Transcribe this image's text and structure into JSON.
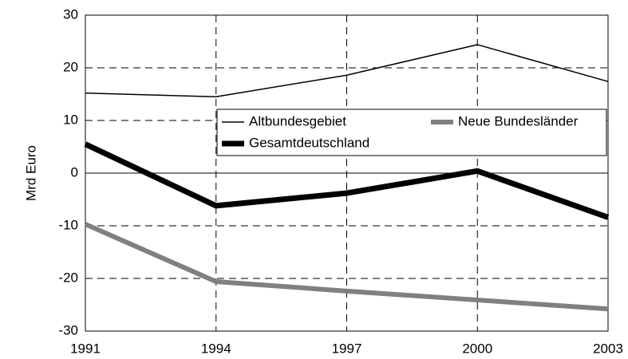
{
  "chart_data": {
    "type": "line",
    "y_label": "Mrd Euro",
    "x": [
      1991,
      1994,
      1997,
      2000,
      2003
    ],
    "xlim": [
      1991,
      2003
    ],
    "xticks": [
      1991,
      1994,
      1997,
      2000,
      2003
    ],
    "ylim": [
      -30,
      30
    ],
    "yticks": [
      -30,
      -20,
      -10,
      0,
      10,
      20,
      30
    ],
    "grid": true,
    "legend": "center right",
    "series": [
      {
        "name": "Altbundesgebiet",
        "color": "#000000",
        "values": [
          15.2,
          14.5,
          18.6,
          24.4,
          17.4
        ]
      },
      {
        "name": "Neue Bundesländer",
        "color": "#808080",
        "values": [
          -9.7,
          -20.6,
          -22.4,
          -24.1,
          -25.8
        ]
      },
      {
        "name": "Gesamtdeutschland",
        "color": "#000000",
        "values": [
          5.5,
          -6.2,
          -3.8,
          0.4,
          -8.4
        ]
      }
    ]
  }
}
